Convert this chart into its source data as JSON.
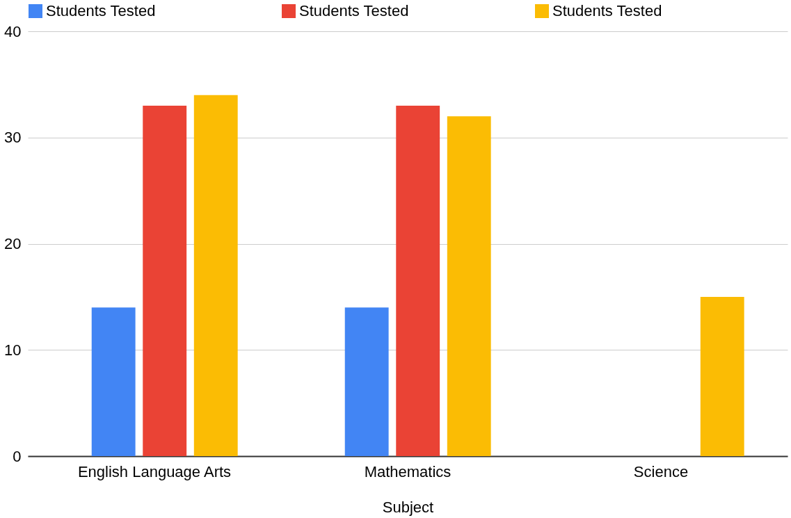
{
  "chart_data": {
    "type": "bar",
    "xlabel": "Subject",
    "categories": [
      "English Language Arts",
      "Mathematics",
      "Science"
    ],
    "series": [
      {
        "name": "Students Tested",
        "color": "#4285f4",
        "values": [
          14,
          14,
          null
        ]
      },
      {
        "name": "Students Tested",
        "color": "#ea4335",
        "values": [
          33,
          33,
          null
        ]
      },
      {
        "name": "Students Tested",
        "color": "#fbbc04",
        "values": [
          34,
          32,
          15
        ]
      }
    ],
    "ylim": [
      0,
      40
    ],
    "yticks": [
      0,
      10,
      20,
      30,
      40
    ],
    "grid": "y",
    "legend": "top"
  }
}
